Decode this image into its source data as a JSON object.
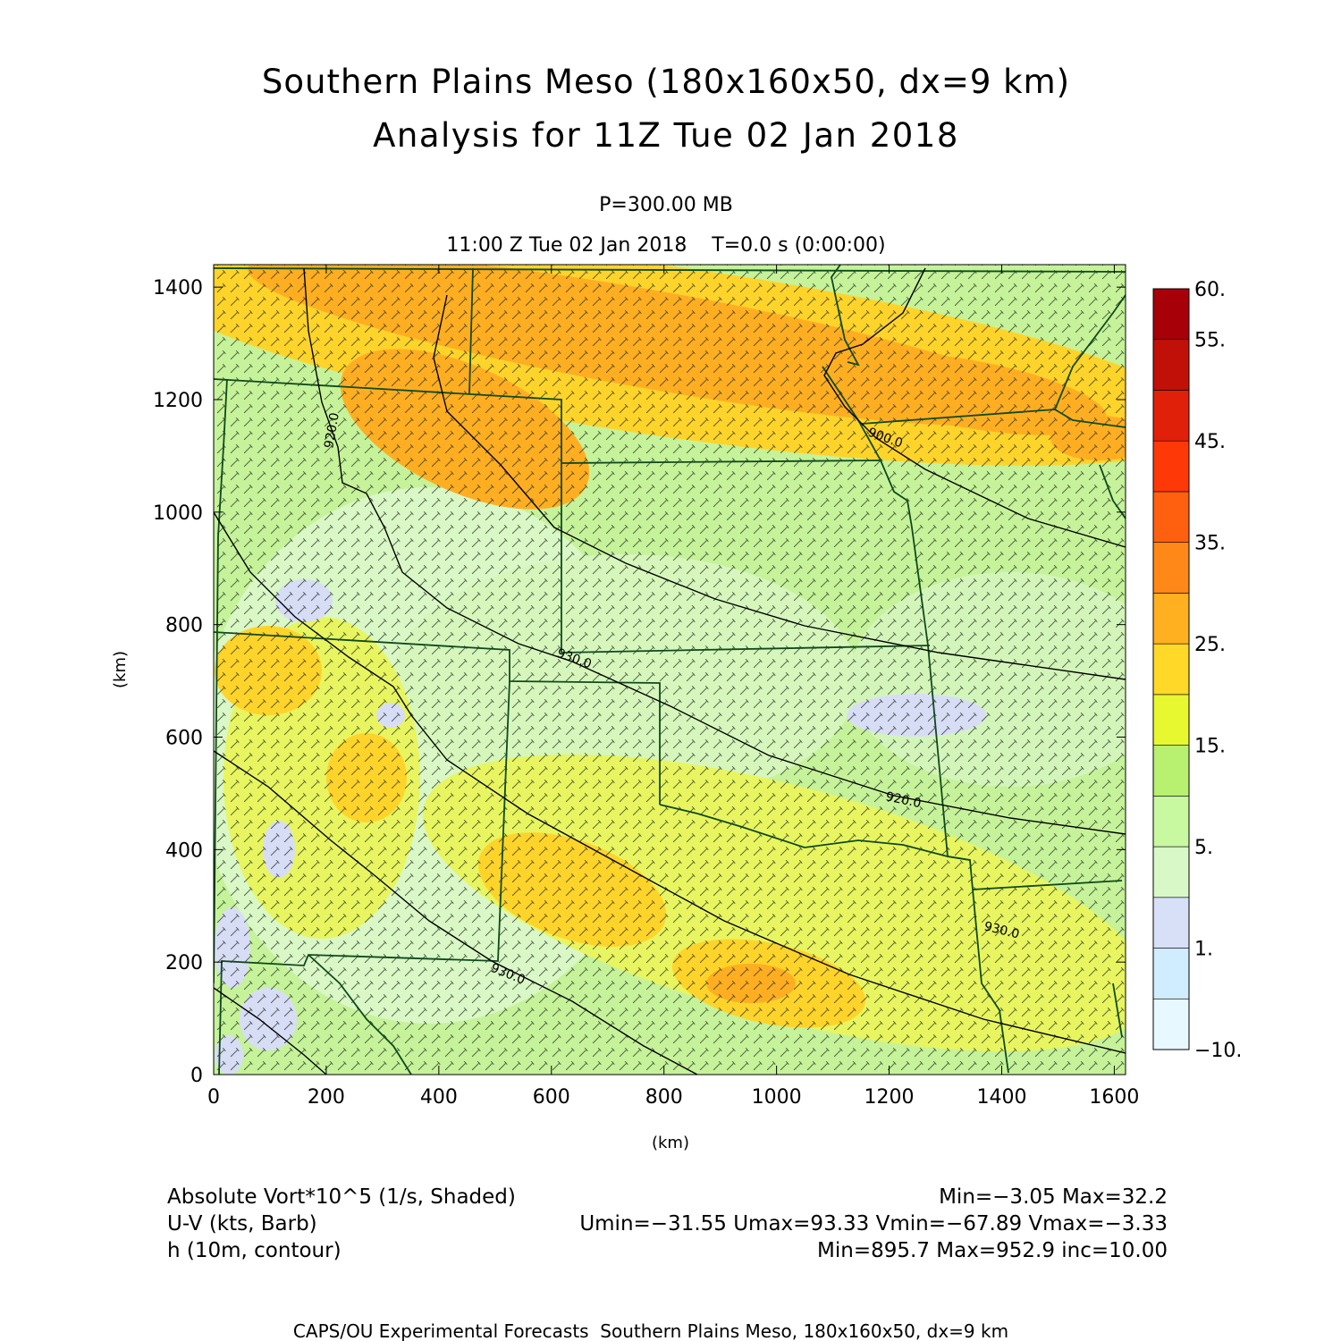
{
  "title_line1": "Southern Plains Meso (180x160x50, dx=9 km)",
  "title_line2": "Analysis for 11Z Tue 02 Jan 2018",
  "subtitle_pressure": "P=300.00 MB",
  "subtitle_time": "11:00 Z Tue 02 Jan 2018    T=0.0 s (0:00:00)",
  "footer": "CAPS/OU Experimental Forecasts  Southern Plains Meso, 180x160x50, dx=9 km",
  "field_info": [
    {
      "label": "Absolute Vort*10^5 (1/s, Shaded)",
      "stats": "Min=-3.05 Max=32.2"
    },
    {
      "label": "U-V (kts, Barb)",
      "stats": "Umin=-31.55 Umax=93.33 Vmin=-67.89 Vmax=-3.33"
    },
    {
      "label": "h (10m, contour)",
      "stats": "Min=895.7 Max=952.9 inc=10.00"
    }
  ],
  "chart_data": {
    "type": "heatmap",
    "xlabel": "(km)",
    "ylabel": "(km)",
    "xlim": [
      0,
      1620
    ],
    "ylim": [
      0,
      1440
    ],
    "xticks": [
      0,
      200,
      400,
      600,
      800,
      1000,
      1200,
      1400,
      1600
    ],
    "yticks": [
      0,
      200,
      400,
      600,
      800,
      1000,
      1200,
      1400
    ],
    "colorbar": {
      "levels": [
        -10,
        -5,
        1,
        2,
        5,
        10,
        15,
        20,
        25,
        30,
        35,
        40,
        45,
        50,
        55,
        60
      ],
      "labels": [
        {
          "value": -10,
          "text": "-10."
        },
        {
          "value": 1,
          "text": "1."
        },
        {
          "value": 5,
          "text": "5."
        },
        {
          "value": 15,
          "text": "15."
        },
        {
          "value": 25,
          "text": "25."
        },
        {
          "value": 35,
          "text": "35."
        },
        {
          "value": 45,
          "text": "45."
        },
        {
          "value": 55,
          "text": "55."
        },
        {
          "value": 60,
          "text": "60."
        }
      ],
      "colors": [
        "#e8f8ff",
        "#d0ecff",
        "#d8e0f8",
        "#d8f8c8",
        "#c8f8a0",
        "#b8f070",
        "#e8f830",
        "#ffd828",
        "#ffb020",
        "#ff8818",
        "#ff6010",
        "#ff3808",
        "#e02008",
        "#c01008",
        "#a80008"
      ]
    },
    "contour_labels": [
      "920.0",
      "930.0",
      "900.0",
      "920.0",
      "930.0",
      "930.0"
    ],
    "vorticity_range": [
      -3.05,
      32.2
    ],
    "height_range": [
      895.7,
      952.9
    ],
    "height_contour_interval": 10.0
  }
}
